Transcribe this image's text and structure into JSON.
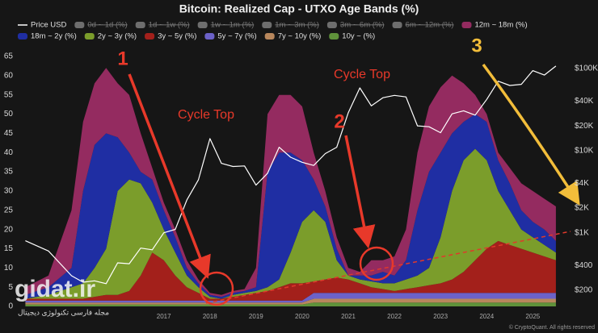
{
  "chart_data": {
    "type": "area",
    "stacked": true,
    "title": "Bitcoin: Realized Cap - UTXO Age Bands (%)",
    "x": [
      2014.0,
      2014.5,
      2015.0,
      2015.25,
      2015.5,
      2015.75,
      2016.0,
      2016.25,
      2016.5,
      2016.75,
      2017.0,
      2017.25,
      2017.5,
      2017.75,
      2018.0,
      2018.25,
      2018.5,
      2018.75,
      2019.0,
      2019.25,
      2019.5,
      2019.75,
      2020.0,
      2020.25,
      2020.5,
      2020.75,
      2021.0,
      2021.25,
      2021.5,
      2021.75,
      2022.0,
      2022.25,
      2022.5,
      2022.75,
      2023.0,
      2023.25,
      2023.5,
      2023.75,
      2024.0,
      2024.25,
      2024.5,
      2024.75,
      2025.0,
      2025.25,
      2025.5
    ],
    "xlim": [
      2013.8,
      2025.8
    ],
    "xticks": [
      2017,
      2018,
      2019,
      2020,
      2021,
      2022,
      2023,
      2024,
      2025
    ],
    "ylim": [
      0,
      65
    ],
    "yticks": [
      0,
      5,
      10,
      15,
      20,
      25,
      30,
      35,
      40,
      45,
      50,
      55,
      60,
      65
    ],
    "y2scale": "log",
    "y2lim": [
      127,
      140000
    ],
    "y2ticks": [
      {
        "value": 200,
        "label": "$200"
      },
      {
        "value": 400,
        "label": "$400"
      },
      {
        "value": 1000,
        "label": "$1K"
      },
      {
        "value": 2000,
        "label": "$2K"
      },
      {
        "value": 4000,
        "label": "$4K"
      },
      {
        "value": 10000,
        "label": "$10K"
      },
      {
        "value": 20000,
        "label": "$20K"
      },
      {
        "value": 40000,
        "label": "$40K"
      },
      {
        "value": 100000,
        "label": "$100K"
      }
    ],
    "grid": false,
    "series": [
      {
        "name": "Price USD",
        "color": "#ffffff",
        "axis": "y2",
        "values": [
          800,
          600,
          300,
          250,
          260,
          240,
          430,
          420,
          650,
          620,
          1000,
          1100,
          2500,
          4400,
          14000,
          7000,
          6400,
          6500,
          3800,
          5300,
          11000,
          8300,
          7200,
          6600,
          9200,
          11000,
          29000,
          58000,
          35000,
          44000,
          47000,
          45000,
          20000,
          19500,
          16500,
          28000,
          30500,
          27000,
          42000,
          70000,
          62000,
          64000,
          94000,
          83000,
          107000
        ]
      },
      {
        "name": "0d ~ 1d (%)",
        "color": "#6e6e6e",
        "visible": false
      },
      {
        "name": "1d ~ 1w (%)",
        "color": "#6e6e6e",
        "visible": false
      },
      {
        "name": "1w ~ 1m (%)",
        "color": "#6e6e6e",
        "visible": false
      },
      {
        "name": "1m ~ 3m (%)",
        "color": "#6e6e6e",
        "visible": false
      },
      {
        "name": "3m ~ 6m (%)",
        "color": "#6e6e6e",
        "visible": false
      },
      {
        "name": "6m ~ 12m (%)",
        "color": "#6e6e6e",
        "visible": false
      },
      {
        "name": "12m ~ 18m (%)",
        "color": "#942b60",
        "values": [
          2,
          3,
          15,
          18,
          16,
          17,
          14,
          15,
          10,
          3,
          2,
          2,
          2,
          1,
          0.5,
          0.5,
          0.5,
          0.5,
          5,
          15,
          15,
          15,
          14,
          7,
          4,
          3,
          2,
          1,
          4,
          3,
          5,
          8,
          15,
          17,
          17,
          15,
          10,
          5,
          2,
          2,
          4,
          7,
          8,
          8,
          9
        ]
      },
      {
        "name": "18m ~ 2y (%)",
        "color": "#1f2ea3",
        "values": [
          1,
          2,
          5,
          24,
          32,
          30,
          14,
          7,
          3,
          6,
          5,
          4,
          2,
          1,
          0.5,
          0.5,
          0.5,
          0.5,
          1,
          30,
          33,
          26,
          16,
          8,
          4,
          3,
          0,
          1,
          1.5,
          3,
          2,
          5,
          17,
          25,
          22,
          15,
          10,
          9,
          10,
          8,
          7,
          5,
          4,
          4,
          3
        ]
      },
      {
        "name": "2y ~ 3y (%)",
        "color": "#7b9d2b",
        "values": [
          0,
          1,
          3,
          4,
          7.5,
          12,
          27,
          29,
          24,
          13,
          8,
          6,
          3,
          1.5,
          0.5,
          0,
          0.5,
          0.5,
          0.5,
          1,
          2,
          8,
          16,
          18.5,
          15,
          4.5,
          1,
          1,
          1.5,
          1.5,
          2,
          2.5,
          3,
          4.5,
          12,
          23,
          29,
          29,
          23,
          13,
          9,
          5,
          4,
          3,
          2
        ]
      },
      {
        "name": "3y ~ 5y (%)",
        "color": "#a3201b",
        "values": [
          0.5,
          0.5,
          0.5,
          0.5,
          1,
          1.5,
          1.5,
          2.5,
          6.5,
          12.5,
          10.5,
          6.5,
          3.5,
          2,
          0.5,
          0.5,
          1,
          1.5,
          2,
          2.5,
          3.5,
          4.5,
          4.5,
          3,
          3.5,
          4,
          3.5,
          2.5,
          1.5,
          1,
          0.5,
          1,
          1.5,
          2,
          2.5,
          3.5,
          5.5,
          8.5,
          11.5,
          13.5,
          12.5,
          11.5,
          10.5,
          9.5,
          8.5
        ]
      },
      {
        "name": "5y ~ 7y (%)",
        "color": "#6c62c8",
        "values": [
          0.5,
          0.5,
          0.5,
          0.5,
          0.5,
          0.5,
          0.5,
          0.5,
          0.5,
          0.5,
          0.5,
          0.5,
          0.5,
          0.5,
          0.5,
          0.5,
          0.5,
          0.5,
          0.5,
          0.5,
          0.5,
          0.5,
          0.5,
          1.5,
          1.5,
          1.5,
          1.5,
          1.5,
          1.5,
          1.5,
          1.5,
          1.5,
          1.5,
          1.5,
          1.5,
          1.5,
          1.5,
          1.5,
          1.5,
          1.5,
          1.5,
          1.5,
          1.5,
          1.5,
          1.5
        ]
      },
      {
        "name": "7y ~ 10y (%)",
        "color": "#b8875c",
        "values": [
          0.5,
          0.5,
          0.5,
          0.5,
          0.5,
          0.5,
          0.5,
          0.5,
          0.5,
          0.5,
          0.5,
          0.5,
          0.5,
          0.5,
          0.5,
          0.5,
          0.5,
          0.5,
          0.5,
          0.5,
          0.5,
          0.5,
          0.5,
          1,
          1,
          1,
          1,
          1,
          1,
          1,
          1,
          1,
          1,
          1,
          1,
          1,
          1,
          1,
          1,
          1,
          1,
          1,
          1,
          1,
          1
        ]
      },
      {
        "name": "10y ~ (%)",
        "color": "#5f923a",
        "values": [
          0.5,
          0.5,
          0.5,
          0.5,
          0.5,
          0.5,
          0.5,
          0.5,
          0.5,
          0.5,
          0.5,
          0.5,
          0.5,
          0.5,
          0.5,
          0.5,
          0.5,
          0.5,
          0.5,
          0.5,
          0.5,
          0.5,
          0.5,
          1,
          1,
          1,
          1,
          1,
          1,
          1,
          1,
          1,
          1,
          1,
          1,
          1,
          1,
          1,
          1,
          1,
          1,
          1,
          1,
          1,
          1
        ]
      }
    ],
    "annotations": [
      "1",
      "Cycle Top",
      "Cycle Top",
      "2",
      "3"
    ],
    "credit": "© CryptoQuant. All rights reserved"
  },
  "watermark": {
    "title": "gidat.ir",
    "subtitle": "مجله فارسی تکنولوژی دیجیتال"
  }
}
